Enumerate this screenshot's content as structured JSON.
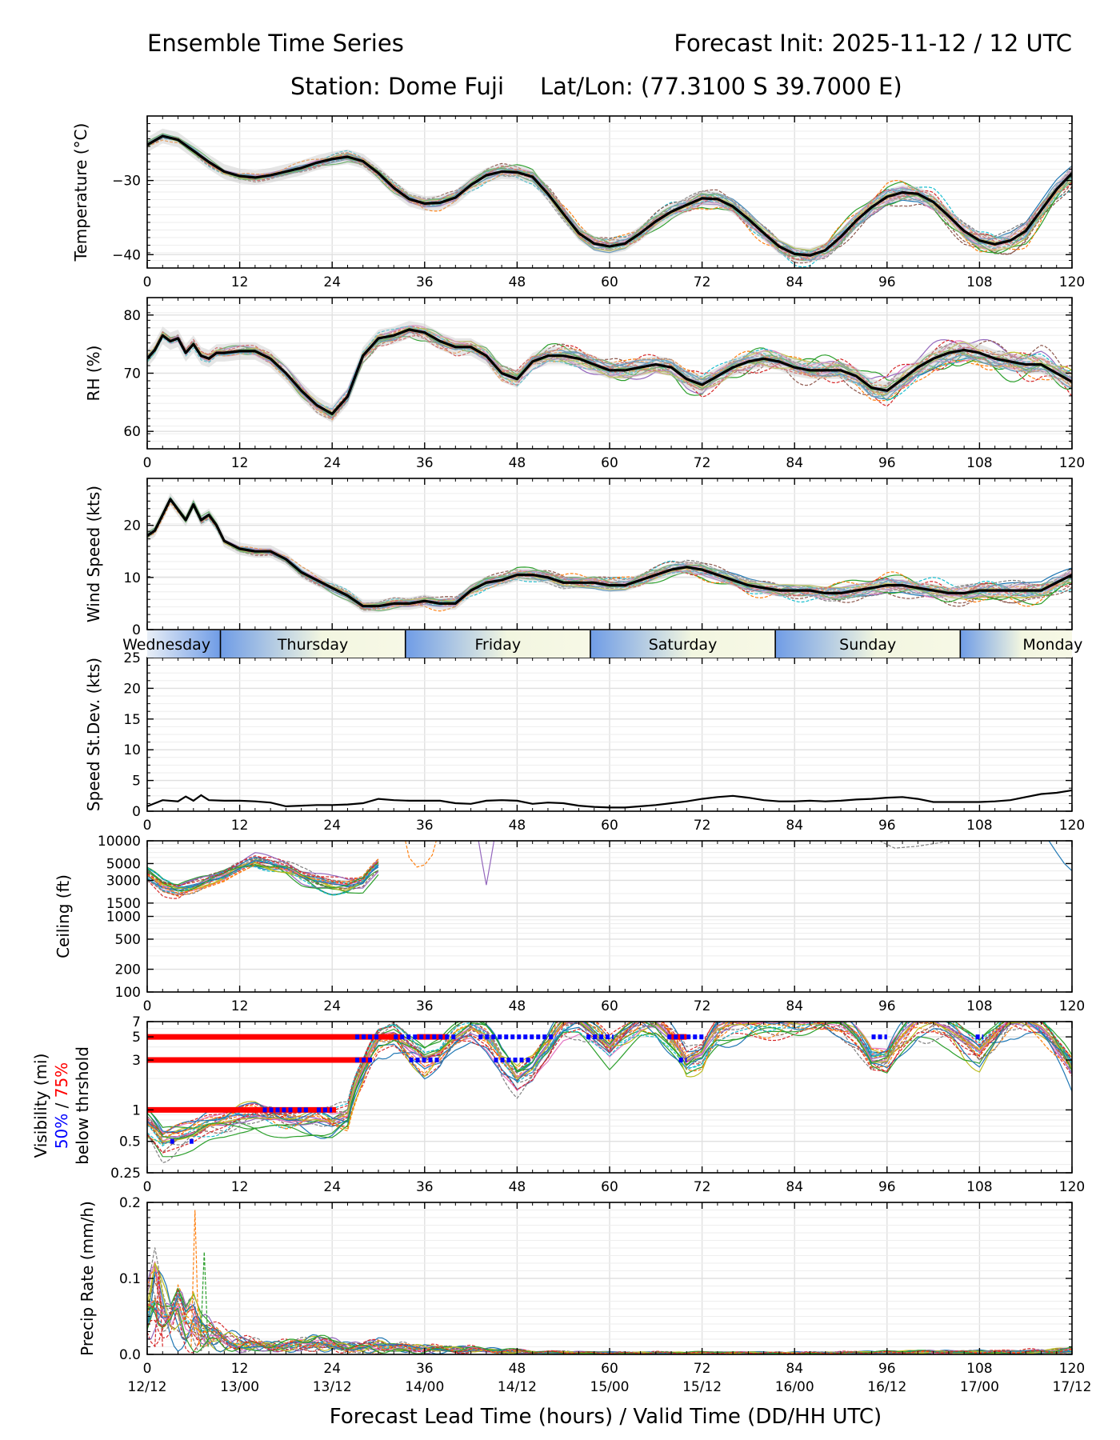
{
  "header": {
    "title_left": "Ensemble Time Series",
    "title_right": "Forecast Init: 2025-11-12 / 12 UTC",
    "station": "Station: Dome Fuji",
    "latlon": "Lat/Lon: (77.3100 S 39.7000 E)"
  },
  "x_axis": {
    "label": "Forecast Lead Time (hours) / Valid Time (DD/HH UTC)",
    "range": [
      0,
      120
    ],
    "ticks": [
      "0",
      "12",
      "24",
      "36",
      "48",
      "60",
      "72",
      "84",
      "96",
      "108",
      "120"
    ],
    "valid_times": [
      "12/12",
      "13/00",
      "13/12",
      "14/00",
      "14/12",
      "15/00",
      "15/12",
      "16/00",
      "16/12",
      "17/00",
      "17/12"
    ]
  },
  "day_band": {
    "days": [
      "Wednesday",
      "Thursday",
      "Friday",
      "Saturday",
      "Sunday",
      "Monday"
    ],
    "boundaries_hours": [
      9.5,
      33.5,
      57.5,
      81.5,
      105.5
    ]
  },
  "legend_vis": {
    "line1": "Visibility (mi)",
    "p50": "50%",
    "slash": " / ",
    "p75": "75%",
    "line3": "below thrshold"
  },
  "colors": {
    "mean": "#000000",
    "p50": "#0000ff",
    "p75": "#ff0000",
    "grid": "#e0e0e0"
  },
  "chart_data": [
    {
      "type": "line",
      "id": "temp",
      "ylabel": "Temperature (°C)",
      "ylim": [
        -41.8,
        -21.3
      ],
      "yticks": [
        -30,
        -40
      ],
      "ytick_labels": [
        "−30",
        "−40"
      ],
      "x": [
        0,
        2,
        4,
        6,
        8,
        10,
        12,
        14,
        16,
        18,
        20,
        22,
        24,
        26,
        28,
        30,
        32,
        34,
        36,
        38,
        40,
        42,
        44,
        46,
        48,
        50,
        52,
        54,
        56,
        58,
        60,
        62,
        64,
        66,
        68,
        70,
        72,
        74,
        76,
        78,
        80,
        82,
        84,
        86,
        88,
        90,
        92,
        94,
        96,
        98,
        100,
        102,
        104,
        106,
        108,
        110,
        112,
        114,
        116,
        118,
        120
      ],
      "mean": [
        -25.2,
        -24.0,
        -24.5,
        -26.0,
        -27.5,
        -28.8,
        -29.4,
        -29.6,
        -29.3,
        -28.8,
        -28.3,
        -27.6,
        -27.1,
        -26.8,
        -27.4,
        -29.0,
        -31.0,
        -32.5,
        -33.1,
        -33.0,
        -32.3,
        -30.6,
        -29.3,
        -28.8,
        -28.9,
        -29.5,
        -31.8,
        -34.5,
        -37.1,
        -38.5,
        -38.9,
        -38.5,
        -37.1,
        -35.5,
        -34.2,
        -33.3,
        -32.4,
        -32.5,
        -33.5,
        -35.2,
        -37.1,
        -38.9,
        -39.9,
        -40.1,
        -39.4,
        -37.6,
        -35.4,
        -33.6,
        -32.2,
        -31.6,
        -31.8,
        -32.9,
        -34.8,
        -36.8,
        -38.1,
        -38.6,
        -38.1,
        -36.8,
        -34.0,
        -31.2,
        -29.0
      ],
      "spread": 1.0,
      "members": 24,
      "member_variation": 0.9
    },
    {
      "type": "line",
      "id": "rh",
      "ylabel": "RH (%)",
      "ylim": [
        57,
        83
      ],
      "yticks": [
        80,
        70,
        60
      ],
      "ytick_labels": [
        "80",
        "70",
        "60"
      ],
      "x": [
        0,
        1,
        2,
        3,
        4,
        5,
        6,
        7,
        8,
        9,
        10,
        12,
        14,
        16,
        18,
        20,
        22,
        24,
        26,
        28,
        30,
        32,
        34,
        36,
        38,
        40,
        42,
        44,
        46,
        48,
        50,
        52,
        54,
        56,
        58,
        60,
        62,
        64,
        66,
        68,
        70,
        72,
        74,
        76,
        78,
        80,
        82,
        84,
        86,
        88,
        90,
        92,
        94,
        96,
        98,
        100,
        102,
        104,
        106,
        108,
        110,
        112,
        114,
        116,
        118,
        120
      ],
      "mean": [
        72.5,
        74.0,
        76.5,
        75.5,
        76.0,
        73.5,
        75.0,
        73.0,
        72.5,
        73.5,
        73.5,
        73.8,
        73.8,
        72.5,
        70.0,
        67.0,
        64.5,
        63.0,
        66.0,
        73.0,
        76.0,
        76.5,
        77.5,
        77.0,
        75.5,
        74.5,
        74.5,
        73.0,
        70.0,
        69.0,
        72.0,
        73.0,
        73.0,
        72.5,
        71.5,
        70.5,
        70.5,
        71.0,
        71.5,
        71.0,
        69.0,
        68.0,
        69.5,
        71.0,
        72.0,
        72.5,
        72.0,
        71.0,
        70.5,
        70.5,
        70.5,
        69.5,
        67.5,
        67.0,
        69.0,
        71.0,
        72.5,
        73.5,
        74.0,
        73.5,
        72.5,
        72.0,
        71.5,
        71.5,
        70.0,
        68.5
      ],
      "spread": 1.5,
      "members": 24,
      "member_variation": 1.3
    },
    {
      "type": "line",
      "id": "wspd",
      "ylabel": "Wind Speed (kts)",
      "ylim": [
        0,
        29
      ],
      "yticks": [
        0,
        10,
        20
      ],
      "ytick_labels": [
        "0",
        "10",
        "20"
      ],
      "x": [
        0,
        1,
        2,
        3,
        4,
        5,
        6,
        7,
        8,
        9,
        10,
        12,
        14,
        16,
        18,
        20,
        22,
        24,
        26,
        28,
        30,
        32,
        34,
        36,
        38,
        40,
        42,
        44,
        46,
        48,
        50,
        52,
        54,
        56,
        58,
        60,
        62,
        64,
        66,
        68,
        70,
        72,
        74,
        76,
        78,
        80,
        82,
        84,
        86,
        88,
        90,
        92,
        94,
        96,
        98,
        100,
        102,
        104,
        106,
        108,
        110,
        112,
        114,
        116,
        118,
        120
      ],
      "mean": [
        18.0,
        19.0,
        22.0,
        25.0,
        23.0,
        21.0,
        24.0,
        21.0,
        22.0,
        20.0,
        17.0,
        15.5,
        15.0,
        15.0,
        13.5,
        11.0,
        9.5,
        8.0,
        6.5,
        4.5,
        4.5,
        5.0,
        5.0,
        5.5,
        5.0,
        5.0,
        7.5,
        9.0,
        9.5,
        10.5,
        10.5,
        10.0,
        9.0,
        9.0,
        9.0,
        8.5,
        8.5,
        9.5,
        10.5,
        11.5,
        12.0,
        11.5,
        10.5,
        9.5,
        8.5,
        8.0,
        7.5,
        7.5,
        7.5,
        7.0,
        7.0,
        7.5,
        8.0,
        8.5,
        8.5,
        8.0,
        7.5,
        7.0,
        7.0,
        7.5,
        7.5,
        7.5,
        7.5,
        7.5,
        9.0,
        10.5
      ],
      "spread": 1.2,
      "members": 24,
      "member_variation": 1.2
    },
    {
      "type": "line",
      "id": "sdev",
      "ylabel": "Speed St.Dev. (kts)",
      "ylim": [
        0,
        25
      ],
      "yticks": [
        0,
        5,
        10,
        15,
        20,
        25
      ],
      "ytick_labels": [
        "0",
        "5",
        "10",
        "15",
        "20",
        "25"
      ],
      "x": [
        0,
        2,
        4,
        5,
        6,
        7,
        8,
        10,
        12,
        14,
        16,
        18,
        20,
        22,
        24,
        26,
        28,
        30,
        32,
        34,
        36,
        38,
        40,
        42,
        44,
        46,
        48,
        50,
        52,
        54,
        56,
        58,
        60,
        62,
        64,
        66,
        68,
        70,
        72,
        74,
        76,
        78,
        80,
        82,
        84,
        86,
        88,
        90,
        92,
        94,
        96,
        98,
        100,
        102,
        104,
        106,
        108,
        110,
        112,
        114,
        116,
        118,
        120
      ],
      "values": [
        0.8,
        1.8,
        1.6,
        2.4,
        1.7,
        2.6,
        1.8,
        1.7,
        1.7,
        1.6,
        1.4,
        0.8,
        0.9,
        1.0,
        1.0,
        1.1,
        1.3,
        2.0,
        1.8,
        1.7,
        1.7,
        1.7,
        1.3,
        1.2,
        1.7,
        1.8,
        1.7,
        1.2,
        1.4,
        1.3,
        0.9,
        0.7,
        0.6,
        0.6,
        0.8,
        1.0,
        1.3,
        1.6,
        2.0,
        2.3,
        2.5,
        2.2,
        1.8,
        1.6,
        1.6,
        1.7,
        1.6,
        1.7,
        1.9,
        2.0,
        2.2,
        2.3,
        2.0,
        1.5,
        1.5,
        1.5,
        1.5,
        1.6,
        1.8,
        2.3,
        2.8,
        3.0,
        3.4
      ]
    },
    {
      "type": "line",
      "id": "ceiling",
      "yscale": "log",
      "ylabel": "Ceiling (ft)",
      "ylim": [
        100,
        10000
      ],
      "yticks": [
        10000,
        5000,
        3000,
        1500,
        1000,
        500,
        200,
        100
      ],
      "ytick_labels": [
        "10000",
        "5000",
        "3000",
        "1500",
        "1000",
        "500",
        "200",
        "100"
      ],
      "x": [
        0,
        2,
        4,
        6,
        8,
        10,
        12,
        14,
        16,
        18,
        20,
        22,
        24,
        26,
        28,
        30
      ],
      "mean": [
        3500,
        2500,
        2200,
        2500,
        3000,
        3500,
        4500,
        5500,
        5000,
        4500,
        3500,
        3000,
        2700,
        2600,
        3000,
        5000
      ],
      "members": 24,
      "member_variation": 0.25,
      "extra_segments": [
        {
          "x": [
            33.5,
            34,
            35,
            36,
            37,
            37.5
          ],
          "y": [
            10000,
            6000,
            4500,
            4800,
            6500,
            10000
          ]
        },
        {
          "x": [
            43,
            43.5,
            44,
            44.5,
            45
          ],
          "y": [
            10000,
            5000,
            2600,
            5000,
            10000
          ]
        },
        {
          "x": [
            95,
            97,
            100,
            103,
            104
          ],
          "y": [
            10000,
            8000,
            8500,
            9500,
            10000
          ]
        },
        {
          "x": [
            117,
            118,
            119,
            120
          ],
          "y": [
            10000,
            7000,
            5000,
            4000
          ]
        }
      ]
    },
    {
      "type": "line",
      "id": "vis",
      "yscale": "log",
      "ylabel": "Visibility (mi)",
      "ylim": [
        0.25,
        7
      ],
      "yticks": [
        7,
        5,
        3,
        1,
        0.5,
        0.25
      ],
      "ytick_labels": [
        "7",
        "5",
        "3",
        "1",
        "0.5",
        "0.25"
      ],
      "x": [
        0,
        2,
        4,
        6,
        8,
        10,
        12,
        14,
        16,
        18,
        20,
        22,
        24,
        26,
        28,
        30,
        32,
        34,
        36,
        38,
        40,
        42,
        44,
        46,
        48,
        50,
        52,
        54,
        56,
        58,
        60,
        62,
        64,
        66,
        68,
        70,
        72,
        74,
        76,
        78,
        80,
        82,
        84,
        86,
        88,
        90,
        92,
        94,
        96,
        98,
        100,
        102,
        104,
        106,
        108,
        110,
        112,
        114,
        116,
        118,
        120
      ],
      "mean": [
        0.75,
        0.5,
        0.55,
        0.6,
        0.7,
        0.75,
        0.85,
        0.9,
        0.85,
        0.8,
        0.8,
        0.85,
        0.8,
        0.9,
        2.5,
        5.0,
        5.5,
        4.0,
        3.0,
        3.5,
        5.0,
        6.0,
        5.0,
        3.0,
        2.0,
        2.5,
        4.0,
        6.5,
        7.0,
        5.5,
        4.0,
        5.5,
        7.0,
        7.0,
        5.0,
        3.0,
        3.5,
        6.0,
        7.0,
        7.0,
        7.0,
        7.0,
        7.0,
        7.0,
        7.0,
        6.5,
        5.0,
        3.0,
        3.0,
        5.0,
        7.0,
        7.0,
        6.0,
        4.5,
        3.5,
        5.0,
        7.0,
        7.0,
        6.0,
        4.0,
        2.5
      ],
      "members": 24,
      "member_variation": 0.35,
      "p75_segments": [
        {
          "y": 5,
          "x": [
            0,
            33
          ]
        },
        {
          "y": 3,
          "x": [
            0,
            29
          ]
        },
        {
          "y": 1,
          "x": [
            0,
            24.5
          ]
        },
        {
          "y": 5,
          "x": [
            35,
            39
          ]
        },
        {
          "y": 5,
          "x": [
            68,
            70
          ]
        }
      ],
      "p50_segments": [
        {
          "y": 5,
          "x": [
            27,
            30
          ]
        },
        {
          "y": 5,
          "x": [
            32,
            40
          ]
        },
        {
          "y": 5,
          "x": [
            43,
            53
          ]
        },
        {
          "y": 5,
          "x": [
            57,
            60.5
          ]
        },
        {
          "y": 5,
          "x": [
            67.5,
            72.5
          ]
        },
        {
          "y": 5,
          "x": [
            94,
            96
          ]
        },
        {
          "y": 5,
          "x": [
            107.5,
            108.5
          ]
        },
        {
          "y": 3,
          "x": [
            27,
            29.5
          ]
        },
        {
          "y": 3,
          "x": [
            34,
            38
          ]
        },
        {
          "y": 3,
          "x": [
            45,
            50
          ]
        },
        {
          "y": 3,
          "x": [
            69,
            70
          ]
        },
        {
          "y": 1,
          "x": [
            15,
            19
          ]
        },
        {
          "y": 1,
          "x": [
            19.5,
            21
          ]
        },
        {
          "y": 1,
          "x": [
            22,
            24
          ]
        },
        {
          "y": 0.5,
          "x": [
            3,
            3.5
          ]
        },
        {
          "y": 0.5,
          "x": [
            5.5,
            6
          ]
        }
      ]
    },
    {
      "type": "line",
      "id": "precip",
      "ylabel": "Precip Rate (mm/h)",
      "ylim": [
        0,
        0.2
      ],
      "yticks": [
        0.2,
        0.1,
        0.0
      ],
      "ytick_labels": [
        "0.2",
        "0.1",
        "0.0"
      ],
      "x": [
        0,
        1,
        2,
        3,
        4,
        5,
        6,
        7,
        8,
        9,
        10,
        12,
        14,
        16,
        18,
        20,
        22,
        24,
        26,
        28,
        30,
        32,
        34,
        36,
        38,
        40,
        42,
        44,
        46,
        48,
        50,
        60,
        70,
        80,
        90,
        100,
        110,
        116,
        120
      ],
      "mean": [
        0.05,
        0.08,
        0.06,
        0.05,
        0.06,
        0.04,
        0.05,
        0.035,
        0.03,
        0.025,
        0.02,
        0.015,
        0.012,
        0.01,
        0.01,
        0.012,
        0.015,
        0.012,
        0.01,
        0.01,
        0.012,
        0.01,
        0.008,
        0.008,
        0.007,
        0.006,
        0.006,
        0.005,
        0.004,
        0.004,
        0.003,
        0.002,
        0.002,
        0.002,
        0.002,
        0.003,
        0.003,
        0.004,
        0.005
      ],
      "members": 24,
      "member_variation": 0.6,
      "peaks": [
        {
          "x": 6.2,
          "y": 0.19
        },
        {
          "x": 7.4,
          "y": 0.135
        },
        {
          "x": 1.5,
          "y": 0.11
        }
      ]
    }
  ]
}
